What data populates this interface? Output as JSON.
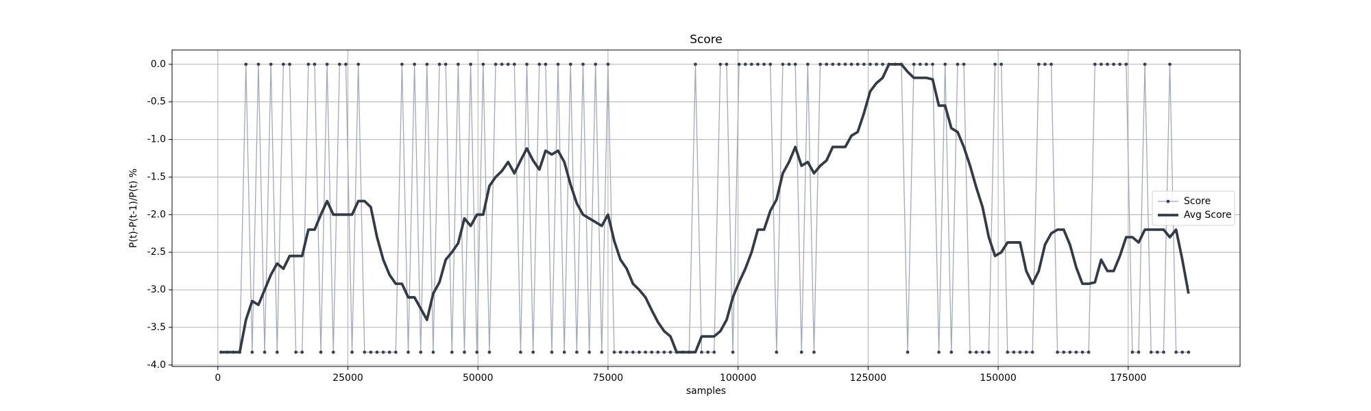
{
  "chart_data": {
    "type": "line",
    "title": "Score",
    "x_label": "samples",
    "y_label": "P(t)-P(t-1)/P(t) %",
    "x": [
      600,
      1800,
      3000,
      4200,
      5400,
      6600,
      7800,
      9000,
      10200,
      11400,
      12600,
      13800,
      15000,
      16200,
      17400,
      18600,
      19800,
      21000,
      22200,
      23400,
      24600,
      25800,
      27000,
      28200,
      29400,
      30600,
      31800,
      33000,
      34200,
      35400,
      36600,
      37800,
      39000,
      40200,
      41400,
      42600,
      43800,
      45000,
      46200,
      47400,
      48600,
      49800,
      51000,
      52200,
      53400,
      54600,
      55800,
      57000,
      58200,
      59400,
      60600,
      61800,
      63000,
      64200,
      65400,
      66600,
      67800,
      69000,
      70200,
      71400,
      72600,
      73800,
      75000,
      76200,
      77400,
      78600,
      79800,
      81000,
      82200,
      83400,
      84600,
      85800,
      87000,
      88200,
      89400,
      90600,
      91800,
      93000,
      94200,
      95400,
      96600,
      97800,
      99000,
      100200,
      101400,
      102600,
      103800,
      105000,
      106200,
      107400,
      108600,
      109800,
      111000,
      112200,
      113400,
      114600,
      115800,
      117000,
      118200,
      119400,
      120600,
      121800,
      123000,
      124200,
      125400,
      126600,
      127800,
      129000,
      130200,
      131400,
      132600,
      133800,
      135000,
      136200,
      137400,
      138600,
      139800,
      141000,
      142200,
      143400,
      144600,
      145800,
      147000,
      148200,
      149400,
      150600,
      151800,
      153000,
      154200,
      155400,
      156600,
      157800,
      159000,
      160200,
      161400,
      162600,
      163800,
      165000,
      166200,
      167400,
      168600,
      169800,
      171000,
      172200,
      173400,
      174600,
      175800,
      177000,
      178200,
      179400,
      180600,
      181800,
      183000,
      184200,
      185400,
      186600
    ],
    "series": [
      {
        "name": "Score",
        "color": "#a1a8b9",
        "marker_color": "#3b414c",
        "values": [
          -3.83,
          -3.83,
          -3.83,
          -3.83,
          0,
          -3.83,
          0,
          -3.83,
          0,
          -3.83,
          0,
          0,
          -3.83,
          -3.83,
          0,
          0,
          -3.83,
          0,
          -3.83,
          0,
          0,
          -3.83,
          0,
          -3.83,
          -3.83,
          -3.83,
          -3.83,
          -3.83,
          -3.83,
          0,
          -3.83,
          0,
          -3.83,
          0,
          -3.83,
          0,
          0,
          -3.83,
          0,
          -3.83,
          0,
          -3.83,
          0,
          -3.83,
          0,
          0,
          0,
          0,
          -3.83,
          0,
          -3.83,
          0,
          0,
          -3.83,
          0,
          -3.83,
          0,
          -3.83,
          0,
          -3.83,
          0,
          -3.83,
          0,
          -3.83,
          -3.83,
          -3.83,
          -3.83,
          -3.83,
          -3.83,
          -3.83,
          -3.83,
          -3.83,
          -3.83,
          -3.83,
          -3.83,
          -3.83,
          0,
          -3.83,
          -3.83,
          -3.83,
          0,
          0,
          -3.83,
          0,
          0,
          0,
          0,
          0,
          0,
          -3.83,
          0,
          0,
          0,
          -3.83,
          0,
          -3.83,
          0,
          0,
          0,
          0,
          0,
          0,
          0,
          0,
          0,
          0,
          0,
          0,
          0,
          0,
          -3.83,
          0,
          0,
          0,
          0,
          -3.83,
          0,
          -3.83,
          0,
          0,
          -3.83,
          -3.83,
          -3.83,
          -3.83,
          0,
          0,
          -3.83,
          -3.83,
          -3.83,
          -3.83,
          -3.83,
          0,
          0,
          0,
          -3.83,
          -3.83,
          -3.83,
          -3.83,
          -3.83,
          -3.83,
          0,
          0,
          0,
          0,
          0,
          0,
          -3.83,
          -3.83,
          0,
          -3.83,
          -3.83,
          -3.83,
          0,
          -3.83,
          -3.83,
          -3.83
        ]
      },
      {
        "name": "Avg Score",
        "color": "#353b44",
        "values": [
          -3.83,
          -3.83,
          -3.83,
          -3.83,
          -3.4,
          -3.15,
          -3.2,
          -3.0,
          -2.8,
          -2.65,
          -2.72,
          -2.55,
          -2.55,
          -2.55,
          -2.2,
          -2.2,
          -2.0,
          -1.82,
          -2.0,
          -2.0,
          -2.0,
          -2.0,
          -1.82,
          -1.82,
          -1.9,
          -2.3,
          -2.6,
          -2.8,
          -2.92,
          -2.92,
          -3.1,
          -3.1,
          -3.25,
          -3.4,
          -3.05,
          -2.9,
          -2.6,
          -2.5,
          -2.38,
          -2.05,
          -2.15,
          -2.0,
          -2.0,
          -1.62,
          -1.5,
          -1.42,
          -1.3,
          -1.45,
          -1.28,
          -1.12,
          -1.28,
          -1.4,
          -1.15,
          -1.2,
          -1.15,
          -1.3,
          -1.6,
          -1.85,
          -2.0,
          -2.05,
          -2.1,
          -2.15,
          -2.0,
          -2.35,
          -2.6,
          -2.72,
          -2.92,
          -3.0,
          -3.1,
          -3.27,
          -3.43,
          -3.55,
          -3.62,
          -3.83,
          -3.83,
          -3.83,
          -3.83,
          -3.62,
          -3.62,
          -3.62,
          -3.55,
          -3.4,
          -3.1,
          -2.9,
          -2.72,
          -2.5,
          -2.2,
          -2.2,
          -1.95,
          -1.8,
          -1.45,
          -1.3,
          -1.1,
          -1.35,
          -1.3,
          -1.45,
          -1.35,
          -1.28,
          -1.1,
          -1.1,
          -1.1,
          -0.95,
          -0.9,
          -0.65,
          -0.36,
          -0.25,
          -0.18,
          0,
          0,
          0,
          -0.1,
          -0.18,
          -0.18,
          -0.18,
          -0.2,
          -0.55,
          -0.55,
          -0.85,
          -0.9,
          -1.1,
          -1.35,
          -1.64,
          -1.9,
          -2.3,
          -2.55,
          -2.5,
          -2.37,
          -2.37,
          -2.37,
          -2.75,
          -2.92,
          -2.75,
          -2.4,
          -2.25,
          -2.2,
          -2.2,
          -2.4,
          -2.7,
          -2.92,
          -2.92,
          -2.9,
          -2.6,
          -2.75,
          -2.75,
          -2.55,
          -2.3,
          -2.3,
          -2.37,
          -2.2,
          -2.2,
          -2.2,
          -2.2,
          -2.3,
          -2.2,
          -2.6,
          -3.05
        ]
      }
    ],
    "xlim": [
      -8800,
      196500
    ],
    "ylim": [
      -4.02,
      0.19
    ],
    "xticks": [
      0,
      25000,
      50000,
      75000,
      100000,
      125000,
      150000,
      175000
    ],
    "yticks": [
      {
        "value": -4,
        "label": "-4.0"
      },
      {
        "value": -3.5,
        "label": "-3.5"
      },
      {
        "value": -3,
        "label": "-3.0"
      },
      {
        "value": -2.5,
        "label": "-2.5"
      },
      {
        "value": -2,
        "label": "-2.0"
      },
      {
        "value": -1.5,
        "label": "-1.5"
      },
      {
        "value": -1,
        "label": "-1.0"
      },
      {
        "value": -0.5,
        "label": "-0.5"
      },
      {
        "value": 0,
        "label": "0.0"
      }
    ],
    "grid": true,
    "legend": "right"
  }
}
